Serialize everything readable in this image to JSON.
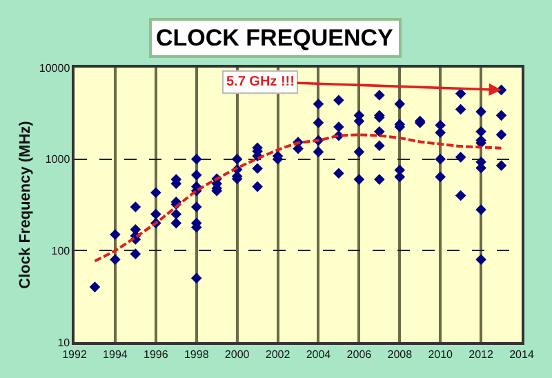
{
  "chart_data": {
    "type": "scatter",
    "title": "CLOCK FREQUENCY",
    "ylabel": "Clock Frequency (MHz)",
    "xlim": [
      1992,
      2014
    ],
    "xticks": [
      1992,
      1994,
      1996,
      1998,
      2000,
      2002,
      2004,
      2006,
      2008,
      2010,
      2012,
      2014
    ],
    "ylim": [
      10,
      10000
    ],
    "yticks": [
      10,
      100,
      1000,
      10000
    ],
    "log": "y",
    "grid": true,
    "annotations": [
      {
        "text": "5.7 GHz !!!",
        "x": 2013,
        "y": 5700
      }
    ],
    "series": [
      {
        "marker": "diamond",
        "color": "#000080",
        "x": [
          1993,
          1994,
          1994,
          1995,
          1995,
          1995,
          1995,
          1995,
          1996,
          1996,
          1996,
          1997,
          1997,
          1997,
          1997,
          1997,
          1997,
          1998,
          1998,
          1998,
          1998,
          1998,
          1998,
          1998,
          1998,
          1999,
          1999,
          1999,
          1999,
          2000,
          2000,
          2000,
          2000,
          2001,
          2001,
          2001,
          2001,
          2001,
          2002,
          2002,
          2003,
          2003,
          2004,
          2004,
          2004,
          2004,
          2005,
          2005,
          2005,
          2005,
          2006,
          2006,
          2006,
          2006,
          2007,
          2007,
          2007,
          2007,
          2007,
          2007,
          2008,
          2008,
          2008,
          2008,
          2008,
          2009,
          2009,
          2010,
          2010,
          2010,
          2010,
          2011,
          2011,
          2011,
          2011,
          2012,
          2012,
          2012,
          2012,
          2012,
          2012,
          2012,
          2012,
          2013,
          2013,
          2013,
          2013
        ],
        "values": [
          40,
          150,
          80,
          300,
          170,
          145,
          133,
          92,
          430,
          250,
          200,
          600,
          540,
          340,
          320,
          250,
          200,
          1000,
          670,
          500,
          450,
          300,
          200,
          180,
          50,
          610,
          540,
          480,
          450,
          1000,
          770,
          650,
          610,
          1330,
          1220,
          1080,
          790,
          500,
          1080,
          1000,
          1530,
          1300,
          4000,
          2500,
          1600,
          1200,
          4400,
          2250,
          1800,
          700,
          3000,
          2600,
          1200,
          600,
          5000,
          3000,
          2850,
          2000,
          1400,
          600,
          4000,
          2400,
          2250,
          760,
          640,
          2600,
          2500,
          2350,
          1950,
          1000,
          640,
          5200,
          3500,
          1050,
          400,
          3300,
          2000,
          1600,
          1500,
          930,
          800,
          280,
          80,
          5700,
          3000,
          1850,
          850
        ]
      },
      {
        "type": "line",
        "marker": "none",
        "line_style": "dashed",
        "color": "#e02020",
        "x": [
          1993,
          1994,
          1996,
          1998,
          2000,
          2002,
          2003,
          2004,
          2005,
          2006,
          2007,
          2008,
          2009,
          2010,
          2011,
          2012,
          2013
        ],
        "values": [
          77,
          100,
          200,
          450,
          800,
          1260,
          1500,
          1600,
          1800,
          1840,
          1800,
          1700,
          1550,
          1460,
          1380,
          1350,
          1320
        ]
      }
    ]
  }
}
